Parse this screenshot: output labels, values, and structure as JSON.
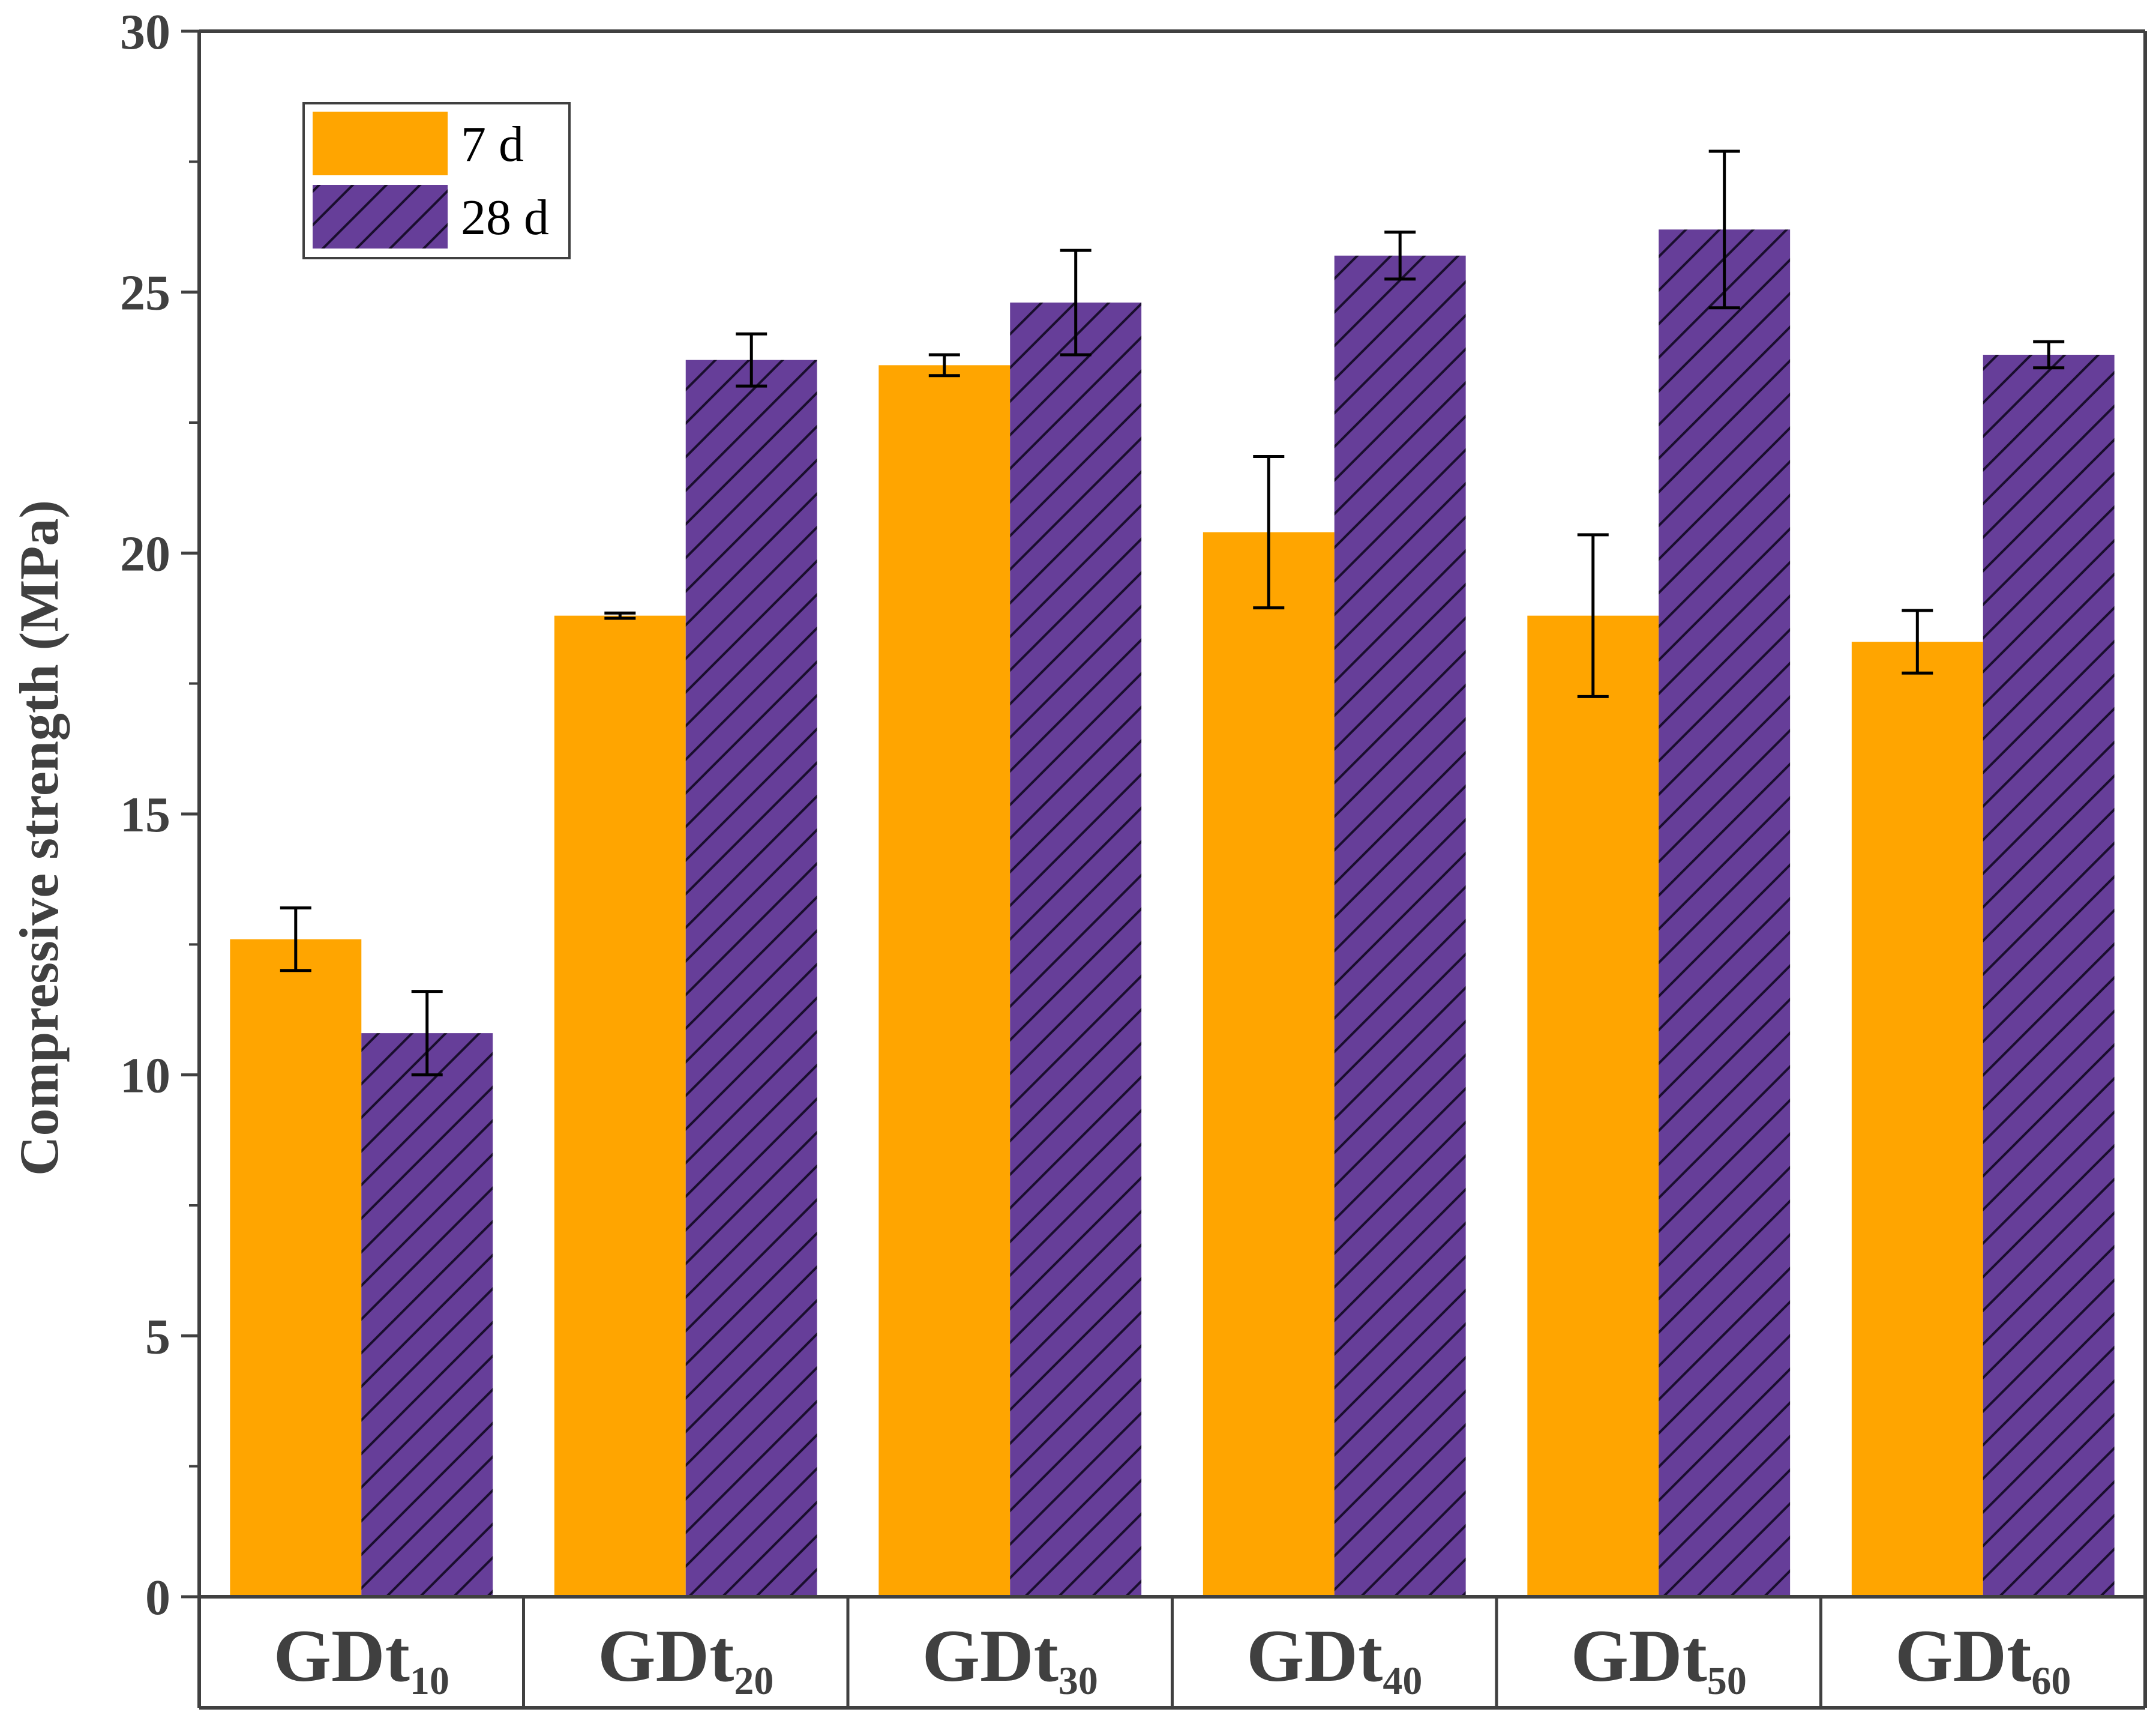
{
  "chart_data": {
    "type": "bar",
    "title": "",
    "xlabel": "",
    "ylabel": "Compressive strength (MPa)",
    "ylim": [
      0,
      30
    ],
    "yticks": [
      0,
      5,
      10,
      15,
      20,
      25,
      30
    ],
    "categories": [
      {
        "base": "GDt",
        "sub": "10"
      },
      {
        "base": "GDt",
        "sub": "20"
      },
      {
        "base": "GDt",
        "sub": "30"
      },
      {
        "base": "GDt",
        "sub": "40"
      },
      {
        "base": "GDt",
        "sub": "50"
      },
      {
        "base": "GDt",
        "sub": "60"
      }
    ],
    "series": [
      {
        "name": "7 d",
        "color": "#FFA500",
        "pattern": "solid",
        "values": [
          12.6,
          18.8,
          23.6,
          20.4,
          18.8,
          18.3
        ],
        "errors": [
          0.6,
          0.05,
          0.2,
          1.45,
          1.55,
          0.6
        ]
      },
      {
        "name": "28 d",
        "color": "#663E99",
        "pattern": "hatch",
        "values": [
          10.8,
          23.7,
          24.8,
          25.7,
          26.2,
          23.8
        ],
        "errors": [
          0.8,
          0.5,
          1.0,
          0.45,
          1.5,
          0.25
        ]
      }
    ],
    "legend_position": "top-left",
    "grid": false
  }
}
